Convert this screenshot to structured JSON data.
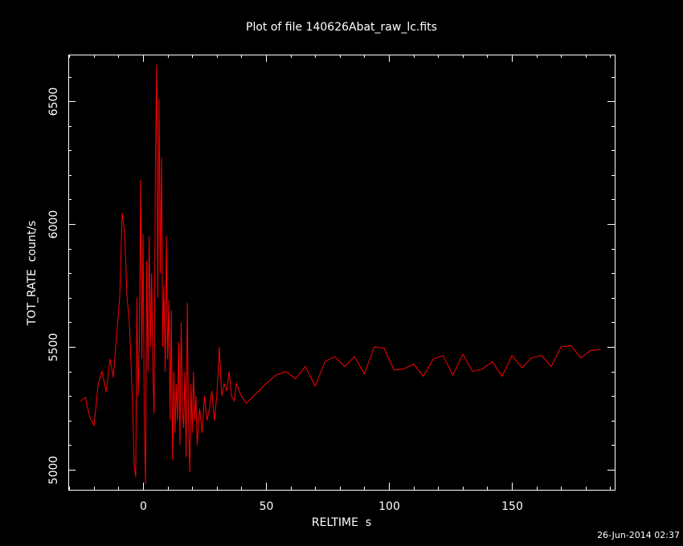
{
  "chart_data": {
    "type": "line",
    "title": "Plot of file 140626Abat_raw_lc.fits",
    "x_label": "RELTIME  s",
    "y_label": "TOT_RATE  count/s",
    "footer": "26-Jun-2014 02:37",
    "color": "#ff0000",
    "xlim": [
      -30.4,
      191.8
    ],
    "ylim": [
      4918,
      6690
    ],
    "xticks": [
      0,
      50,
      100,
      150
    ],
    "yticks": [
      5000,
      5500,
      6000,
      6500
    ],
    "xminorticks": [
      -30,
      -20,
      -10,
      10,
      20,
      30,
      40,
      60,
      70,
      80,
      90,
      110,
      120,
      130,
      140,
      160,
      170,
      180,
      190
    ],
    "yminorticks": [
      5100,
      5200,
      5300,
      5400,
      5600,
      5700,
      5800,
      5900,
      6100,
      6200,
      6300,
      6400,
      6600
    ],
    "x": [
      -25.5,
      -23.5,
      -21.6,
      -19.9,
      -18.3,
      -16.7,
      -15,
      -13.4,
      -12.1,
      -10.8,
      -9.5,
      -8.5,
      -7.5,
      -6.5,
      -5.6,
      -4.9,
      -4.2,
      -3.6,
      -3,
      -2.5,
      -2,
      -1.5,
      -1,
      -0.5,
      0,
      0.5,
      1,
      1.5,
      2,
      2.5,
      3,
      3.5,
      4,
      4.5,
      5,
      5.5,
      6,
      6.5,
      7,
      7.5,
      8,
      8.5,
      9,
      9.5,
      10,
      10.5,
      11,
      11.5,
      12,
      12.5,
      13,
      13.5,
      14,
      14.5,
      15,
      15.5,
      16,
      16.5,
      17,
      17.5,
      18,
      18.5,
      19,
      19.5,
      20,
      20.5,
      21,
      21.5,
      22,
      23,
      24,
      25,
      26,
      27,
      28,
      29,
      30,
      31,
      32,
      33,
      34,
      35,
      36,
      37,
      38,
      40,
      42,
      46,
      50,
      54,
      58,
      62,
      66,
      70,
      74,
      78,
      82,
      86,
      90,
      94,
      98,
      102,
      106,
      110,
      114,
      118,
      122,
      126,
      130,
      134,
      138,
      142,
      146,
      150,
      154,
      158,
      162,
      166,
      170,
      174,
      178,
      182,
      186
    ],
    "values": [
      5278,
      5294,
      5212,
      5180,
      5343,
      5402,
      5317,
      5451,
      5376,
      5539,
      5703,
      6046,
      5964,
      5703,
      5605,
      5441,
      5245,
      5016,
      4970,
      5700,
      5300,
      5500,
      6180,
      5450,
      5960,
      5200,
      4940,
      5850,
      5400,
      5950,
      5500,
      5800,
      5400,
      5230,
      6200,
      6650,
      5700,
      6510,
      5800,
      6270,
      5500,
      5750,
      5400,
      5950,
      5450,
      5690,
      5200,
      5650,
      5040,
      5400,
      5150,
      5350,
      5200,
      5520,
      5100,
      5600,
      5250,
      5170,
      5400,
      5050,
      5680,
      5200,
      4990,
      5350,
      5150,
      5400,
      5200,
      5300,
      5100,
      5250,
      5150,
      5300,
      5200,
      5250,
      5320,
      5200,
      5300,
      5500,
      5300,
      5350,
      5320,
      5400,
      5300,
      5280,
      5350,
      5300,
      5270,
      5310,
      5350,
      5385,
      5400,
      5370,
      5420,
      5340,
      5440,
      5460,
      5420,
      5460,
      5390,
      5500,
      5495,
      5405,
      5410,
      5430,
      5380,
      5450,
      5465,
      5385,
      5470,
      5400,
      5410,
      5440,
      5380,
      5465,
      5415,
      5455,
      5465,
      5420,
      5500,
      5505,
      5455,
      5485,
      5490
    ]
  }
}
